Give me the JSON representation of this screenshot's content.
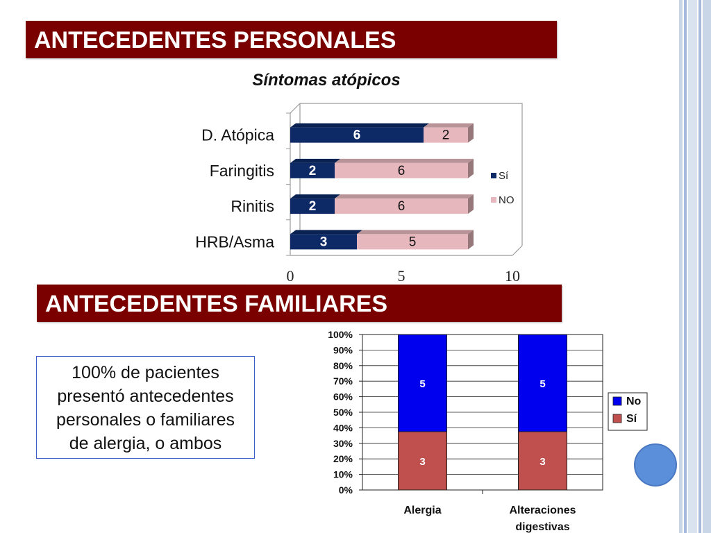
{
  "section1": {
    "title": "ANTECEDENTES PERSONALES"
  },
  "section2": {
    "title": "ANTECEDENTES FAMILIARES"
  },
  "note": {
    "lines": [
      "100% de pacientes",
      "presentó antecedentes",
      "personales o familiares",
      "de alergia, o ambos"
    ]
  },
  "colors": {
    "banner": "#7a0000",
    "si_navy": "#0d2a66",
    "no_pink": "#e6b8bd",
    "no_blue": "#0000ee",
    "si_red": "#c0504d"
  },
  "chart_data": [
    {
      "type": "bar",
      "orientation": "horizontal",
      "stacked": true,
      "title": "Síntomas atópicos",
      "categories": [
        "D. Atópica",
        "Faringitis",
        "Rinitis",
        "HRB/Asma"
      ],
      "series": [
        {
          "name": "Sí",
          "values": [
            6,
            2,
            2,
            3
          ],
          "color": "#0d2a66"
        },
        {
          "name": "NO",
          "values": [
            2,
            6,
            6,
            5
          ],
          "color": "#e6b8bd"
        }
      ],
      "xlim": [
        0,
        10
      ],
      "xticks": [
        "0",
        "5",
        "10"
      ],
      "legend": "right"
    },
    {
      "type": "bar",
      "orientation": "vertical",
      "stacked": true,
      "percent": true,
      "categories": [
        "Alergia",
        "Alteraciones digestivas"
      ],
      "series": [
        {
          "name": "Sí",
          "values": [
            3,
            3
          ],
          "color": "#c0504d"
        },
        {
          "name": "No",
          "values": [
            5,
            5
          ],
          "color": "#0000ee"
        }
      ],
      "ylim": [
        0,
        100
      ],
      "yticks": [
        "0%",
        "10%",
        "20%",
        "30%",
        "40%",
        "50%",
        "60%",
        "70%",
        "80%",
        "90%",
        "100%"
      ],
      "legend": "right"
    }
  ]
}
